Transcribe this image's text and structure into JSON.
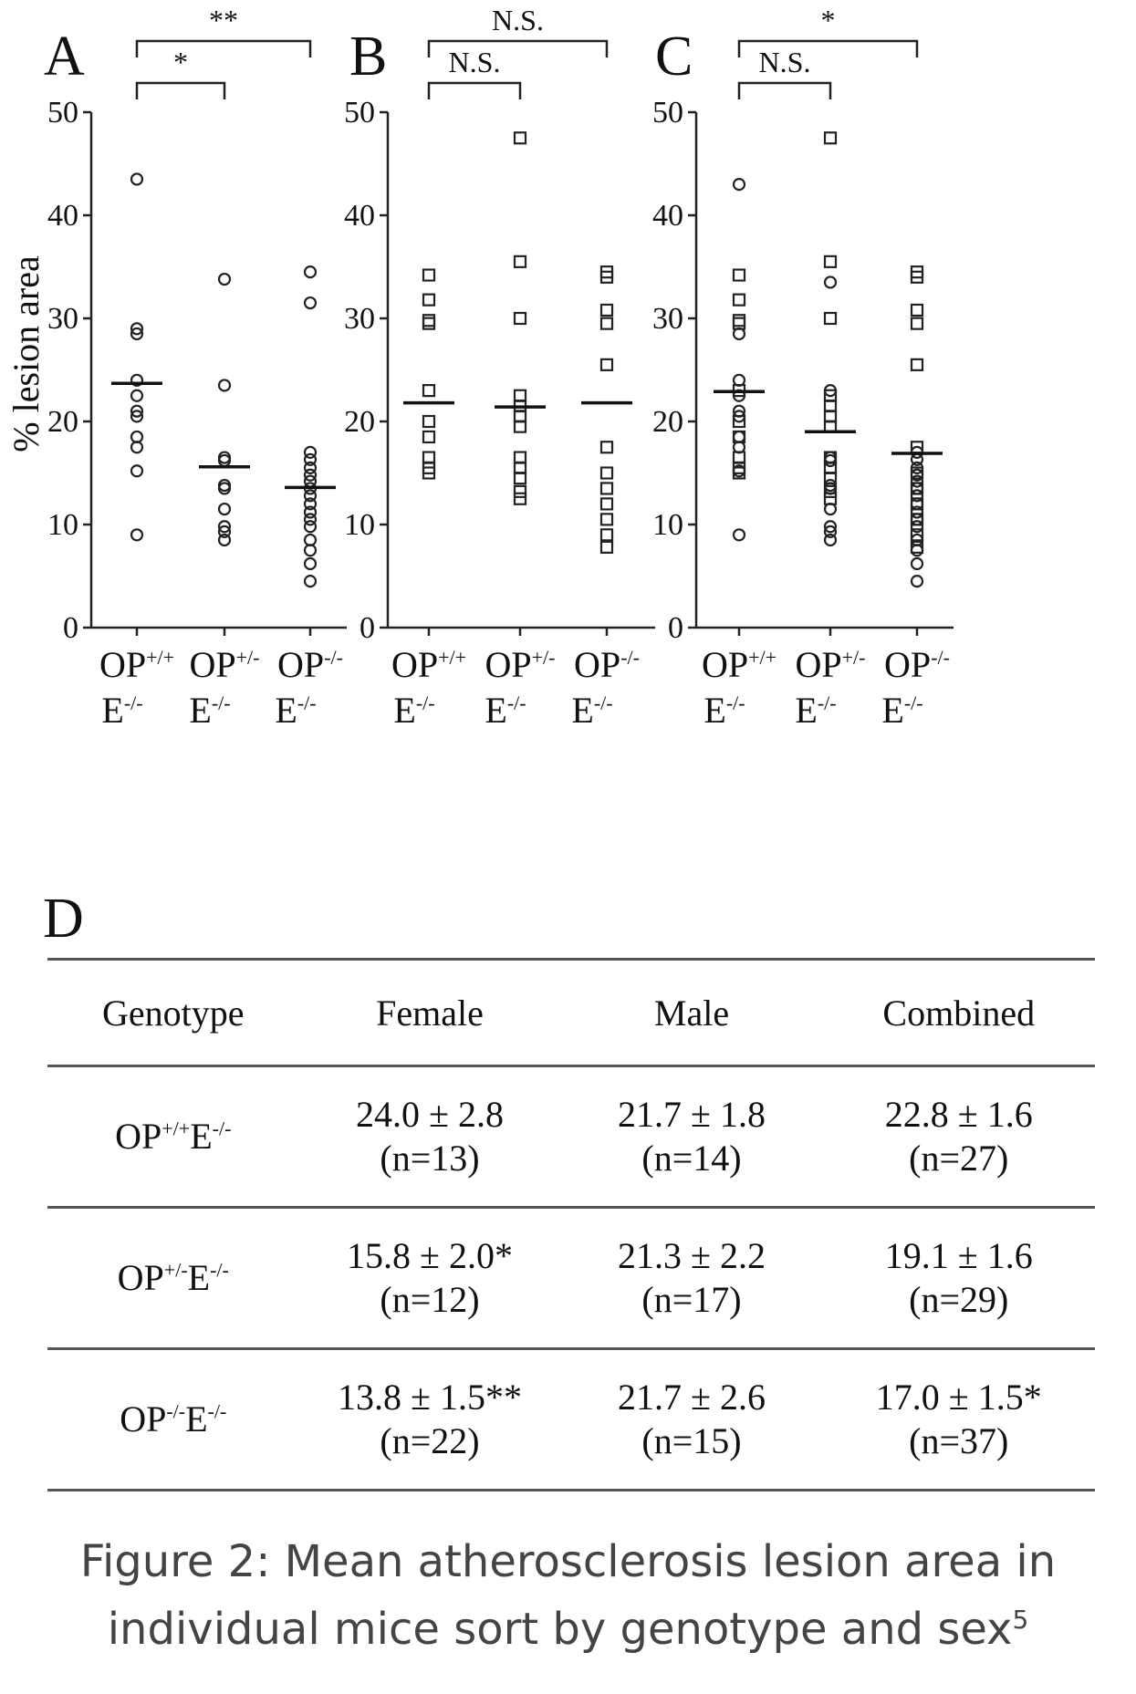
{
  "chart_data": [
    {
      "panel": "A",
      "type": "scatter",
      "ylabel": "% lesion area",
      "ylim": [
        0,
        50
      ],
      "yticks": [
        "0",
        "10",
        "20",
        "30",
        "40",
        "50"
      ],
      "categories": [
        {
          "main": "OP",
          "sup": "+/+",
          "sub_main": "E",
          "sub_sup": "-/-"
        },
        {
          "main": "OP",
          "sup": "+/-",
          "sub_main": "E",
          "sub_sup": "-/-"
        },
        {
          "main": "OP",
          "sup": "-/-",
          "sub_main": "E",
          "sub_sup": "-/-"
        }
      ],
      "marker": "circle",
      "points": [
        [
          43.5,
          29.0,
          28.5,
          24.0,
          22.5,
          21.0,
          20.5,
          18.5,
          17.5,
          15.2,
          9.0
        ],
        [
          33.8,
          23.5,
          16.5,
          16.2,
          13.8,
          13.5,
          11.5,
          9.8,
          9.3,
          8.5
        ],
        [
          34.5,
          31.5,
          17.0,
          16.3,
          15.5,
          14.8,
          14.2,
          13.5,
          12.8,
          12.0,
          11.2,
          10.5,
          9.8,
          8.5,
          7.5,
          6.2,
          4.5
        ]
      ],
      "means": [
        23.7,
        15.6,
        13.6
      ],
      "significance": [
        {
          "from": 0,
          "to": 2,
          "label": "**"
        },
        {
          "from": 0,
          "to": 1,
          "label": "*"
        }
      ]
    },
    {
      "panel": "B",
      "type": "scatter",
      "ylim": [
        0,
        50
      ],
      "yticks": [
        "0",
        "10",
        "20",
        "30",
        "40",
        "50"
      ],
      "categories": [
        {
          "main": "OP",
          "sup": "+/+",
          "sub_main": "E",
          "sub_sup": "-/-"
        },
        {
          "main": "OP",
          "sup": "+/-",
          "sub_main": "E",
          "sub_sup": "-/-"
        },
        {
          "main": "OP",
          "sup": "-/-",
          "sub_main": "E",
          "sub_sup": "-/-"
        }
      ],
      "marker": "square",
      "points": [
        [
          34.2,
          31.8,
          29.8,
          29.5,
          23.0,
          20.0,
          18.5,
          16.5,
          15.5,
          15.0
        ],
        [
          47.5,
          35.5,
          30.0,
          22.5,
          21.5,
          20.5,
          19.5,
          16.5,
          15.5,
          14.5,
          13.2,
          12.5
        ],
        [
          34.5,
          34.0,
          30.8,
          29.5,
          25.5,
          17.5,
          15.0,
          13.5,
          12.0,
          10.5,
          9.0,
          7.8
        ]
      ],
      "means": [
        21.8,
        21.4,
        21.8
      ],
      "significance": [
        {
          "from": 0,
          "to": 2,
          "label": "N.S."
        },
        {
          "from": 0,
          "to": 1,
          "label": "N.S."
        }
      ]
    },
    {
      "panel": "C",
      "type": "scatter",
      "ylim": [
        0,
        50
      ],
      "yticks": [
        "0",
        "10",
        "20",
        "30",
        "40",
        "50"
      ],
      "categories": [
        {
          "main": "OP",
          "sup": "+/+",
          "sub_main": "E",
          "sub_sup": "-/-"
        },
        {
          "main": "OP",
          "sup": "+/-",
          "sub_main": "E",
          "sub_sup": "-/-"
        },
        {
          "main": "OP",
          "sup": "-/-",
          "sub_main": "E",
          "sub_sup": "-/-"
        }
      ],
      "marker": "mixed",
      "points": [
        {
          "circles": [
            43.0,
            28.5,
            24.0,
            22.5,
            21.0,
            20.5,
            18.5,
            17.5,
            15.2,
            9.0
          ],
          "squares": [
            34.2,
            31.8,
            29.8,
            29.5,
            23.0,
            20.0,
            18.5,
            16.5,
            15.5,
            15.0
          ]
        },
        {
          "circles": [
            33.5,
            23.0,
            16.5,
            16.2,
            13.8,
            13.5,
            11.5,
            9.8,
            9.3,
            8.5
          ],
          "squares": [
            47.5,
            35.5,
            30.0,
            22.5,
            21.5,
            20.5,
            19.5,
            16.5,
            15.5,
            14.5,
            13.2,
            12.5
          ]
        },
        {
          "circles": [
            17.0,
            16.3,
            15.5,
            14.8,
            14.2,
            13.5,
            12.8,
            12.0,
            11.2,
            10.5,
            9.8,
            8.5,
            7.5,
            6.2,
            4.5
          ],
          "squares": [
            34.5,
            34.0,
            30.8,
            29.5,
            25.5,
            17.5,
            15.0,
            13.5,
            12.0,
            10.5,
            9.0,
            7.8
          ]
        }
      ],
      "means": [
        22.9,
        19.0,
        16.9
      ],
      "significance": [
        {
          "from": 0,
          "to": 2,
          "label": "*"
        },
        {
          "from": 0,
          "to": 1,
          "label": "N.S."
        }
      ]
    }
  ],
  "table": {
    "panel": "D",
    "headers": [
      "Genotype",
      "Female",
      "Male",
      "Combined"
    ],
    "rows": [
      {
        "geno_main": "OP",
        "geno_sup": "+/+",
        "geno_mid": "E",
        "geno_sup2": "-/-",
        "cells": [
          {
            "value": "24.0 ± 2.8",
            "n": "(n=13)"
          },
          {
            "value": "21.7 ± 1.8",
            "n": "(n=14)"
          },
          {
            "value": "22.8 ± 1.6",
            "n": "(n=27)"
          }
        ]
      },
      {
        "geno_main": "OP",
        "geno_sup": "+/-",
        "geno_mid": "E",
        "geno_sup2": "-/-",
        "cells": [
          {
            "value": "15.8 ± 2.0*",
            "n": "(n=12)"
          },
          {
            "value": "21.3 ± 2.2",
            "n": "(n=17)"
          },
          {
            "value": "19.1 ± 1.6",
            "n": "(n=29)"
          }
        ]
      },
      {
        "geno_main": "OP",
        "geno_sup": "-/-",
        "geno_mid": "E",
        "geno_sup2": "-/-",
        "cells": [
          {
            "value": "13.8 ± 1.5**",
            "n": "(n=22)"
          },
          {
            "value": "21.7 ± 2.6",
            "n": "(n=15)"
          },
          {
            "value": "17.0 ± 1.5*",
            "n": "(n=37)"
          }
        ]
      }
    ]
  },
  "caption": {
    "line1": "Figure 2: Mean atherosclerosis lesion area in",
    "line2": "individual mice sort by genotype and sex",
    "superscript": "5"
  }
}
